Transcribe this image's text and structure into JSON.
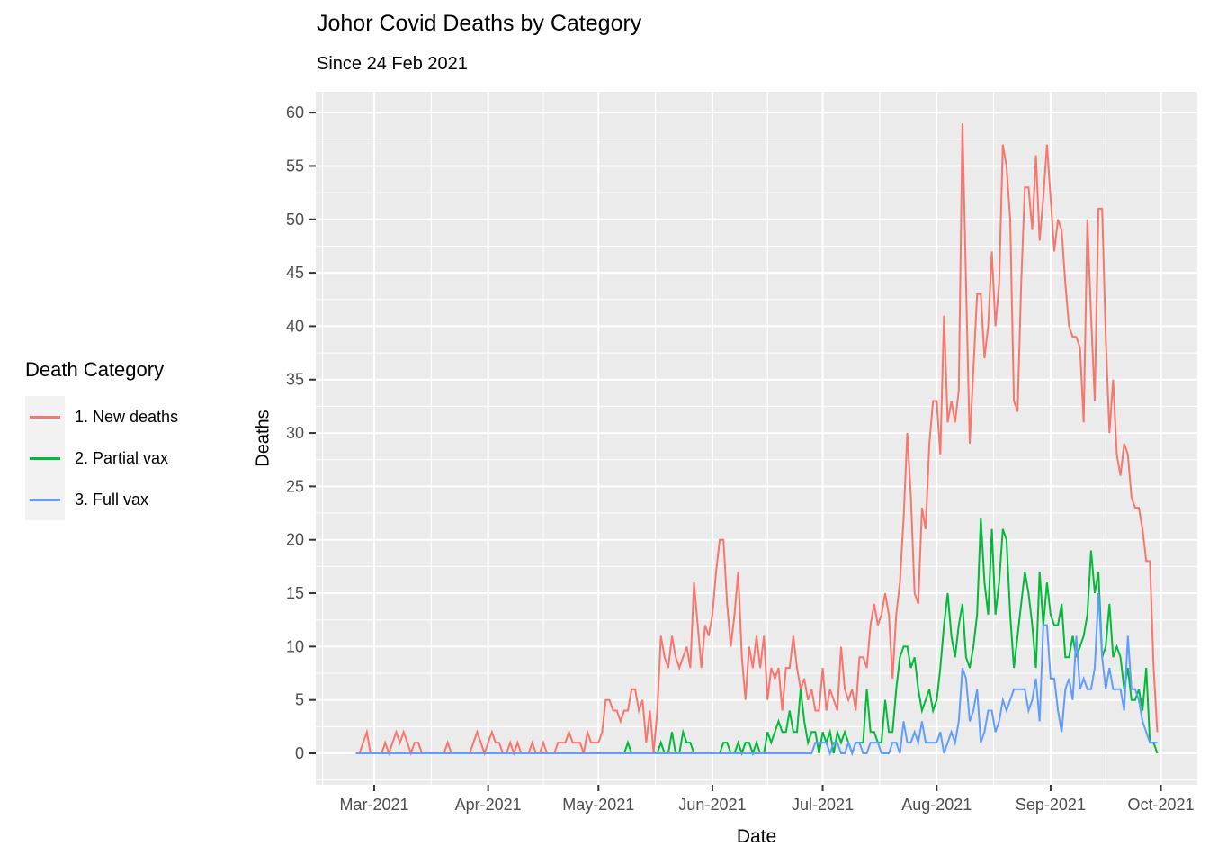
{
  "header": {
    "title": "Johor Covid Deaths by Category",
    "subtitle": "Since 24 Feb 2021"
  },
  "axes": {
    "x_title": "Date",
    "y_title": "Deaths"
  },
  "legend": {
    "title": "Death Category",
    "position": "left",
    "items": [
      {
        "label": "1. New deaths",
        "color": "#F8766D"
      },
      {
        "label": "2. Partial vax",
        "color": "#00BA38"
      },
      {
        "label": "3. Full vax",
        "color": "#619CFF"
      }
    ]
  },
  "colors": {
    "panel_background": "#EBEBEB",
    "gridline": "#FFFFFF",
    "tick_mark": "#333333",
    "axis_text": "#4D4D4D",
    "legend_key_fill": "#F2F2F2",
    "text": "#000000"
  },
  "chart_data": {
    "type": "line",
    "title": "Johor Covid Deaths by Category",
    "subtitle": "Since 24 Feb 2021",
    "xlabel": "Date",
    "ylabel": "Deaths",
    "grid": true,
    "legend_position": "left",
    "start_date": "2021-02-24",
    "end_date": "2021-09-30",
    "xlim": [
      -10.9,
      228.9
    ],
    "ylim": [
      -2.95,
      61.95
    ],
    "x_ticks": [
      {
        "day": 5,
        "label": "Mar-2021"
      },
      {
        "day": 36,
        "label": "Apr-2021"
      },
      {
        "day": 66,
        "label": "May-2021"
      },
      {
        "day": 97,
        "label": "Jun-2021"
      },
      {
        "day": 127,
        "label": "Jul-2021"
      },
      {
        "day": 158,
        "label": "Aug-2021"
      },
      {
        "day": 189,
        "label": "Sep-2021"
      },
      {
        "day": 219,
        "label": "Oct-2021"
      }
    ],
    "x_minor_days": [
      -9,
      20.5,
      51,
      81.5,
      112,
      142.5,
      173.5,
      204
    ],
    "y_ticks": [
      0,
      5,
      10,
      15,
      20,
      25,
      30,
      35,
      40,
      45,
      50,
      55,
      60
    ],
    "y_minor": [
      -2.5,
      2.5,
      7.5,
      12.5,
      17.5,
      22.5,
      27.5,
      32.5,
      37.5,
      42.5,
      47.5,
      52.5,
      57.5
    ],
    "series": [
      {
        "name": "1. New deaths",
        "color": "#F8766D",
        "values": [
          0,
          0,
          1,
          2,
          0,
          0,
          0,
          0,
          1,
          0,
          1,
          2,
          1,
          2,
          1,
          0,
          1,
          1,
          0,
          0,
          0,
          0,
          0,
          0,
          0,
          1,
          0,
          0,
          0,
          0,
          0,
          0,
          1,
          2,
          1,
          0,
          1,
          2,
          1,
          1,
          0,
          0,
          1,
          0,
          1,
          0,
          0,
          0,
          1,
          0,
          0,
          1,
          0,
          0,
          0,
          1,
          1,
          1,
          2,
          1,
          1,
          1,
          0,
          2,
          1,
          1,
          1,
          2,
          5,
          5,
          4,
          4,
          3,
          4,
          4,
          6,
          6,
          4,
          5,
          1,
          4,
          0,
          4,
          11,
          9,
          8,
          11,
          9,
          8,
          9,
          10,
          8,
          16,
          12,
          8,
          12,
          11,
          13,
          17,
          20,
          20,
          14,
          10,
          13,
          17,
          9,
          5,
          10,
          8,
          11,
          8,
          11,
          5,
          8,
          7,
          8,
          4,
          8,
          8,
          11,
          8,
          6,
          7,
          5,
          6,
          4,
          4,
          8,
          4,
          6,
          5,
          4,
          10,
          6,
          5,
          6,
          4,
          9,
          9,
          8,
          12,
          14,
          12,
          13,
          15,
          13,
          7,
          13,
          16,
          22,
          30,
          24,
          15,
          14,
          23,
          21,
          29,
          33,
          33,
          28,
          41,
          31,
          33,
          31,
          34,
          59,
          44,
          29,
          36,
          43,
          43,
          37,
          40,
          47,
          40,
          44,
          57,
          55,
          50,
          33,
          32,
          44,
          53,
          53,
          49,
          56,
          48,
          52,
          57,
          52,
          47,
          50,
          49,
          44,
          40,
          39,
          39,
          38,
          31,
          50,
          41,
          33,
          51,
          51,
          39,
          30,
          35,
          28,
          26,
          29,
          28,
          24,
          23,
          23,
          21,
          18,
          18,
          8,
          2
        ]
      },
      {
        "name": "2. Partial vax",
        "color": "#00BA38",
        "values": [
          0,
          0,
          0,
          0,
          0,
          0,
          0,
          0,
          0,
          0,
          0,
          0,
          0,
          0,
          0,
          0,
          0,
          0,
          0,
          0,
          0,
          0,
          0,
          0,
          0,
          0,
          0,
          0,
          0,
          0,
          0,
          0,
          0,
          0,
          0,
          0,
          0,
          0,
          0,
          0,
          0,
          0,
          0,
          0,
          0,
          0,
          0,
          0,
          0,
          0,
          0,
          0,
          0,
          0,
          0,
          0,
          0,
          0,
          0,
          0,
          0,
          0,
          0,
          0,
          0,
          0,
          0,
          0,
          0,
          0,
          0,
          0,
          0,
          0,
          1,
          0,
          0,
          0,
          0,
          0,
          0,
          0,
          0,
          1,
          0,
          0,
          2,
          0,
          0,
          2,
          1,
          1,
          0,
          0,
          0,
          0,
          0,
          0,
          0,
          0,
          1,
          1,
          0,
          0,
          1,
          0,
          1,
          1,
          0,
          1,
          0,
          0,
          2,
          1,
          2,
          3,
          2,
          2,
          4,
          2,
          2,
          6,
          3,
          1,
          2,
          2,
          0,
          2,
          1,
          2,
          0,
          2,
          1,
          2,
          1,
          0,
          1,
          1,
          1,
          6,
          2,
          2,
          1,
          1,
          5,
          2,
          2,
          6,
          9,
          10,
          10,
          8,
          9,
          6,
          4,
          5,
          6,
          4,
          5,
          8,
          12,
          15,
          11,
          9,
          12,
          14,
          9,
          8,
          10,
          13,
          22,
          16,
          13,
          21,
          13,
          16,
          21,
          20,
          13,
          8,
          11,
          14,
          17,
          15,
          12,
          8,
          17,
          12,
          16,
          13,
          12,
          12,
          14,
          9,
          9,
          11,
          9,
          10,
          11,
          13,
          19,
          15,
          17,
          9,
          10,
          14,
          9,
          10,
          9,
          6,
          8,
          5,
          5,
          6,
          4,
          8,
          1,
          1,
          0
        ]
      },
      {
        "name": "3. Full vax",
        "color": "#619CFF",
        "values": [
          0,
          0,
          0,
          0,
          0,
          0,
          0,
          0,
          0,
          0,
          0,
          0,
          0,
          0,
          0,
          0,
          0,
          0,
          0,
          0,
          0,
          0,
          0,
          0,
          0,
          0,
          0,
          0,
          0,
          0,
          0,
          0,
          0,
          0,
          0,
          0,
          0,
          0,
          0,
          0,
          0,
          0,
          0,
          0,
          0,
          0,
          0,
          0,
          0,
          0,
          0,
          0,
          0,
          0,
          0,
          0,
          0,
          0,
          0,
          0,
          0,
          0,
          0,
          0,
          0,
          0,
          0,
          0,
          0,
          0,
          0,
          0,
          0,
          0,
          0,
          0,
          0,
          0,
          0,
          0,
          0,
          0,
          0,
          0,
          0,
          0,
          0,
          0,
          0,
          0,
          0,
          0,
          0,
          0,
          0,
          0,
          0,
          0,
          0,
          0,
          0,
          0,
          0,
          0,
          0,
          0,
          0,
          0,
          0,
          0,
          0,
          0,
          0,
          0,
          0,
          0,
          0,
          0,
          0,
          0,
          0,
          0,
          0,
          0,
          0,
          1,
          1,
          1,
          1,
          0,
          1,
          1,
          0,
          0,
          1,
          0,
          1,
          1,
          0,
          0,
          1,
          1,
          1,
          0,
          0,
          0,
          1,
          1,
          0,
          3,
          1,
          1,
          2,
          1,
          3,
          1,
          1,
          1,
          1,
          2,
          0,
          1,
          2,
          1,
          3,
          8,
          7,
          3,
          4,
          6,
          1,
          2,
          4,
          4,
          2,
          3,
          5,
          4,
          5,
          6,
          6,
          6,
          6,
          4,
          5,
          7,
          3,
          12,
          12,
          7,
          7,
          4,
          2,
          6,
          7,
          5,
          11,
          6,
          7,
          6,
          6,
          8,
          15,
          9,
          6,
          8,
          6,
          6,
          6,
          4,
          11,
          6,
          6,
          5,
          3,
          2,
          1,
          1,
          1
        ]
      }
    ]
  }
}
